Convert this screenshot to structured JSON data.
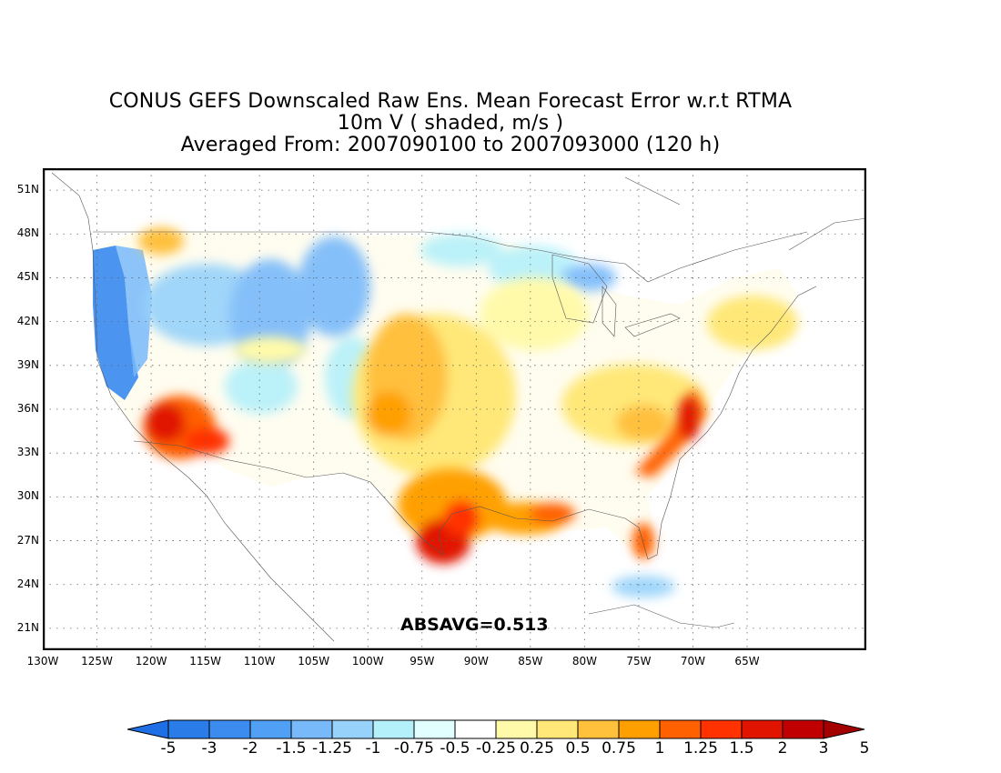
{
  "title": {
    "line1": "CONUS GEFS Downscaled Raw Ens. Mean Forecast Error w.r.t RTMA",
    "line2": "10m V ( shaded, m/s )",
    "line3": "Averaged From: 2007090100 to 2007093000 (120 h)"
  },
  "map": {
    "lon_range": [
      -130,
      -54
    ],
    "lat_range": [
      19.5,
      52.5
    ],
    "lat_ticks": [
      {
        "value": 51,
        "label": "51N"
      },
      {
        "value": 48,
        "label": "48N"
      },
      {
        "value": 45,
        "label": "45N"
      },
      {
        "value": 42,
        "label": "42N"
      },
      {
        "value": 39,
        "label": "39N"
      },
      {
        "value": 36,
        "label": "36N"
      },
      {
        "value": 33,
        "label": "33N"
      },
      {
        "value": 30,
        "label": "30N"
      },
      {
        "value": 27,
        "label": "27N"
      },
      {
        "value": 24,
        "label": "24N"
      },
      {
        "value": 21,
        "label": "21N"
      }
    ],
    "lon_ticks": [
      {
        "value": -130,
        "label": "130W"
      },
      {
        "value": -125,
        "label": "125W"
      },
      {
        "value": -120,
        "label": "120W"
      },
      {
        "value": -115,
        "label": "115W"
      },
      {
        "value": -110,
        "label": "110W"
      },
      {
        "value": -105,
        "label": "105W"
      },
      {
        "value": -100,
        "label": "100W"
      },
      {
        "value": -95,
        "label": "95W"
      },
      {
        "value": -90,
        "label": "90W"
      },
      {
        "value": -85,
        "label": "85W"
      },
      {
        "value": -80,
        "label": "80W"
      },
      {
        "value": -75,
        "label": "75W"
      },
      {
        "value": -70,
        "label": "70W"
      },
      {
        "value": -65,
        "label": "65W"
      }
    ],
    "grid": "dotted",
    "absavg_label": "ABSAVG=0.513"
  },
  "colorbar": {
    "labels": [
      "-5",
      "-3",
      "-2",
      "-1.5",
      "-1.25",
      "-1",
      "-0.75",
      "-0.5",
      "-0.25",
      "0.25",
      "0.5",
      "0.75",
      "1",
      "1.25",
      "1.5",
      "2",
      "3",
      "5"
    ],
    "colors": [
      "#1e6ee6",
      "#2a7ce8",
      "#3c8cf0",
      "#50a0f5",
      "#78b9fa",
      "#96d2fa",
      "#b4f0fa",
      "#e1ffff",
      "#ffffff",
      "#fffaaa",
      "#ffe878",
      "#ffc03c",
      "#ffa000",
      "#ff6000",
      "#ff3200",
      "#e11400",
      "#c00000",
      "#a50000"
    ]
  },
  "fields": [
    {
      "region": "pacific-coast-negative",
      "value": -1.5,
      "color": "#3c8cf0"
    },
    {
      "region": "intermountain-west-negative",
      "value": -1.0,
      "color": "#78b9fa"
    },
    {
      "region": "central-plains-positive",
      "value": 1.0,
      "color": "#ffc03c"
    },
    {
      "region": "southern-california-positive",
      "value": 2.0,
      "color": "#ff3200"
    },
    {
      "region": "texas-coast-positive",
      "value": 2.0,
      "color": "#e11400"
    },
    {
      "region": "gulf-coast-positive",
      "value": 1.25,
      "color": "#ff6000"
    },
    {
      "region": "atlantic-coast-positive",
      "value": 2.0,
      "color": "#e11400"
    },
    {
      "region": "appalachians-positive",
      "value": 0.75,
      "color": "#ffe878"
    },
    {
      "region": "great-lakes-negative",
      "value": -0.75,
      "color": "#96d2fa"
    },
    {
      "region": "florida-positive",
      "value": 1.5,
      "color": "#ff6000"
    }
  ]
}
